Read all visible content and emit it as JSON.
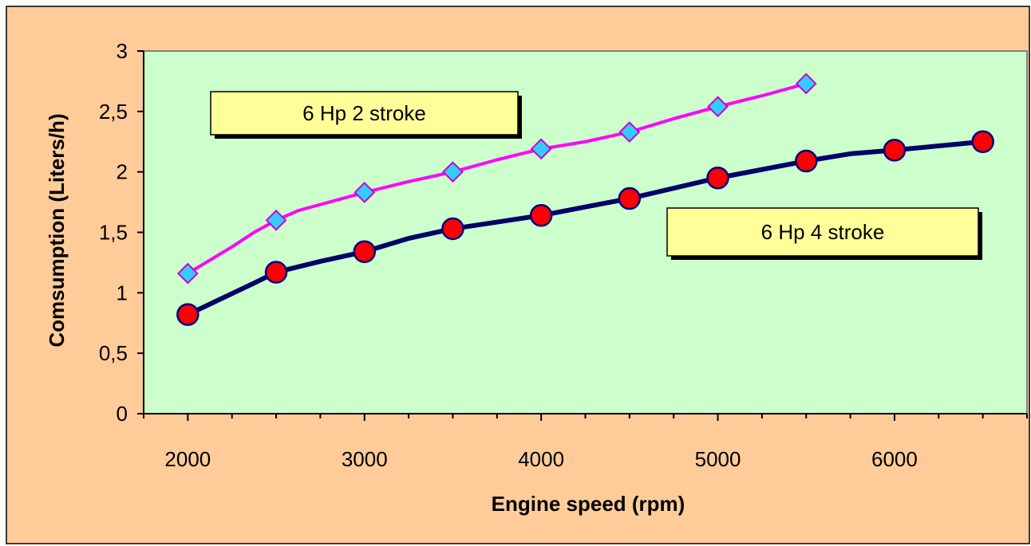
{
  "chart_data": {
    "type": "line",
    "title": "",
    "xlabel": "Engine speed (rpm)",
    "ylabel": "Comsumption (Liters/h)",
    "xlim": [
      1750,
      6750
    ],
    "ylim": [
      0,
      3
    ],
    "x_ticks": [
      2000,
      3000,
      4000,
      5000,
      6000
    ],
    "x_minor_step": 250,
    "y_ticks": [
      0,
      0.5,
      1,
      1.5,
      2,
      2.5,
      3
    ],
    "y_tick_labels": [
      "0",
      "0,5",
      "1",
      "1,5",
      "2",
      "2,5",
      "3"
    ],
    "grid": false,
    "colors": {
      "outer_background": "#ffcc99",
      "plot_background": "#ccffcc",
      "label_box": "#ffff99"
    },
    "series": [
      {
        "name": "6 Hp 2 stroke",
        "line_color": "#ff00ff",
        "marker": "diamond",
        "marker_fill": "#33ccff",
        "marker_edge": "#cc00cc",
        "label_position": "upper-left",
        "x": [
          2000,
          2250,
          2375,
          2500,
          2625,
          2750,
          3000,
          3250,
          3500,
          3750,
          4000,
          4250,
          4500,
          4750,
          5000,
          5250,
          5500
        ],
        "y": [
          1.16,
          1.38,
          1.5,
          1.6,
          1.68,
          1.73,
          1.83,
          1.92,
          2.0,
          2.1,
          2.19,
          2.25,
          2.33,
          2.44,
          2.54,
          2.63,
          2.73
        ],
        "marker_x": [
          2000,
          2500,
          3000,
          3500,
          4000,
          4500,
          5000,
          5500
        ],
        "marker_y": [
          1.16,
          1.6,
          1.83,
          2.0,
          2.19,
          2.33,
          2.54,
          2.73
        ]
      },
      {
        "name": "6 Hp 4 stroke",
        "line_color": "#000066",
        "marker": "circle",
        "marker_fill": "#ff0000",
        "marker_edge": "#000080",
        "label_position": "center-right",
        "x": [
          2000,
          2375,
          2500,
          2750,
          3000,
          3250,
          3500,
          4000,
          4500,
          5000,
          5500,
          5750,
          6000,
          6500
        ],
        "y": [
          0.82,
          1.08,
          1.17,
          1.26,
          1.34,
          1.45,
          1.53,
          1.64,
          1.78,
          1.95,
          2.09,
          2.15,
          2.18,
          2.25
        ],
        "marker_x": [
          2000,
          2500,
          3000,
          3500,
          4000,
          4500,
          5000,
          5500,
          6000,
          6500
        ],
        "marker_y": [
          0.82,
          1.17,
          1.34,
          1.53,
          1.64,
          1.78,
          1.95,
          2.09,
          2.18,
          2.25
        ]
      }
    ]
  }
}
